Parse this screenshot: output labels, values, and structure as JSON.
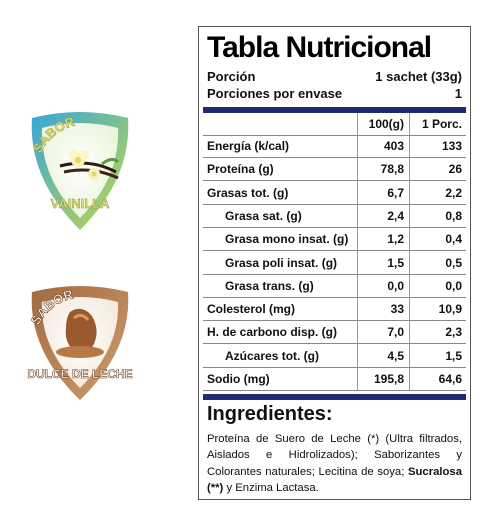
{
  "badges": [
    {
      "top": "SABOR",
      "bottom": "VAINILLA",
      "ring_from": "#37a6d9",
      "ring_to": "#c6d94a",
      "text_color": "#e0de70"
    },
    {
      "top": "SABOR",
      "bottom": "DULCE DE LECHE",
      "ring_from": "#a26a3f",
      "ring_to": "#cf9e70",
      "text_color": "#ffffff"
    }
  ],
  "panel": {
    "title": "Tabla Nutricional",
    "serving_label": "Porción",
    "serving_value": "1 sachet (33g)",
    "servings_label": "Porciones por envase",
    "servings_value": "1",
    "col1": "100(g)",
    "col2": "1 Porc.",
    "rows": [
      {
        "name": "Energía (k/cal)",
        "v1": "403",
        "v2": "133"
      },
      {
        "name": "Proteína (g)",
        "v1": "78,8",
        "v2": "26"
      },
      {
        "name": "Grasas tot. (g)",
        "v1": "6,7",
        "v2": "2,2"
      },
      {
        "name": "Grasa sat. (g)",
        "v1": "2,4",
        "v2": "0,8"
      },
      {
        "name": "Grasa mono insat. (g)",
        "v1": "1,2",
        "v2": "0,4"
      },
      {
        "name": "Grasa poli insat. (g)",
        "v1": "1,5",
        "v2": "0,5"
      },
      {
        "name": "Grasa trans. (g)",
        "v1": "0,0",
        "v2": "0,0"
      },
      {
        "name": "Colesterol (mg)",
        "v1": "33",
        "v2": "10,9"
      },
      {
        "name": "H. de carbono disp. (g)",
        "v1": "7,0",
        "v2": "2,3"
      },
      {
        "name": "Azúcares tot. (g)",
        "v1": "4,5",
        "v2": "1,5"
      },
      {
        "name": "Sodio (mg)",
        "v1": "195,8",
        "v2": "64,6"
      }
    ],
    "ingredients_title": "Ingredientes:",
    "ingredients_text": "Proteína de Suero de Leche (*) (Ultra filtrados, Aislados e Hidrolizados); Saborizantes y Colorantes naturales; Lecitina de soya;",
    "ingredients_bold": "Sucralosa (**)",
    "ingredients_tail": " y Enzima Lactasa.",
    "navy": "#1f2a73"
  }
}
